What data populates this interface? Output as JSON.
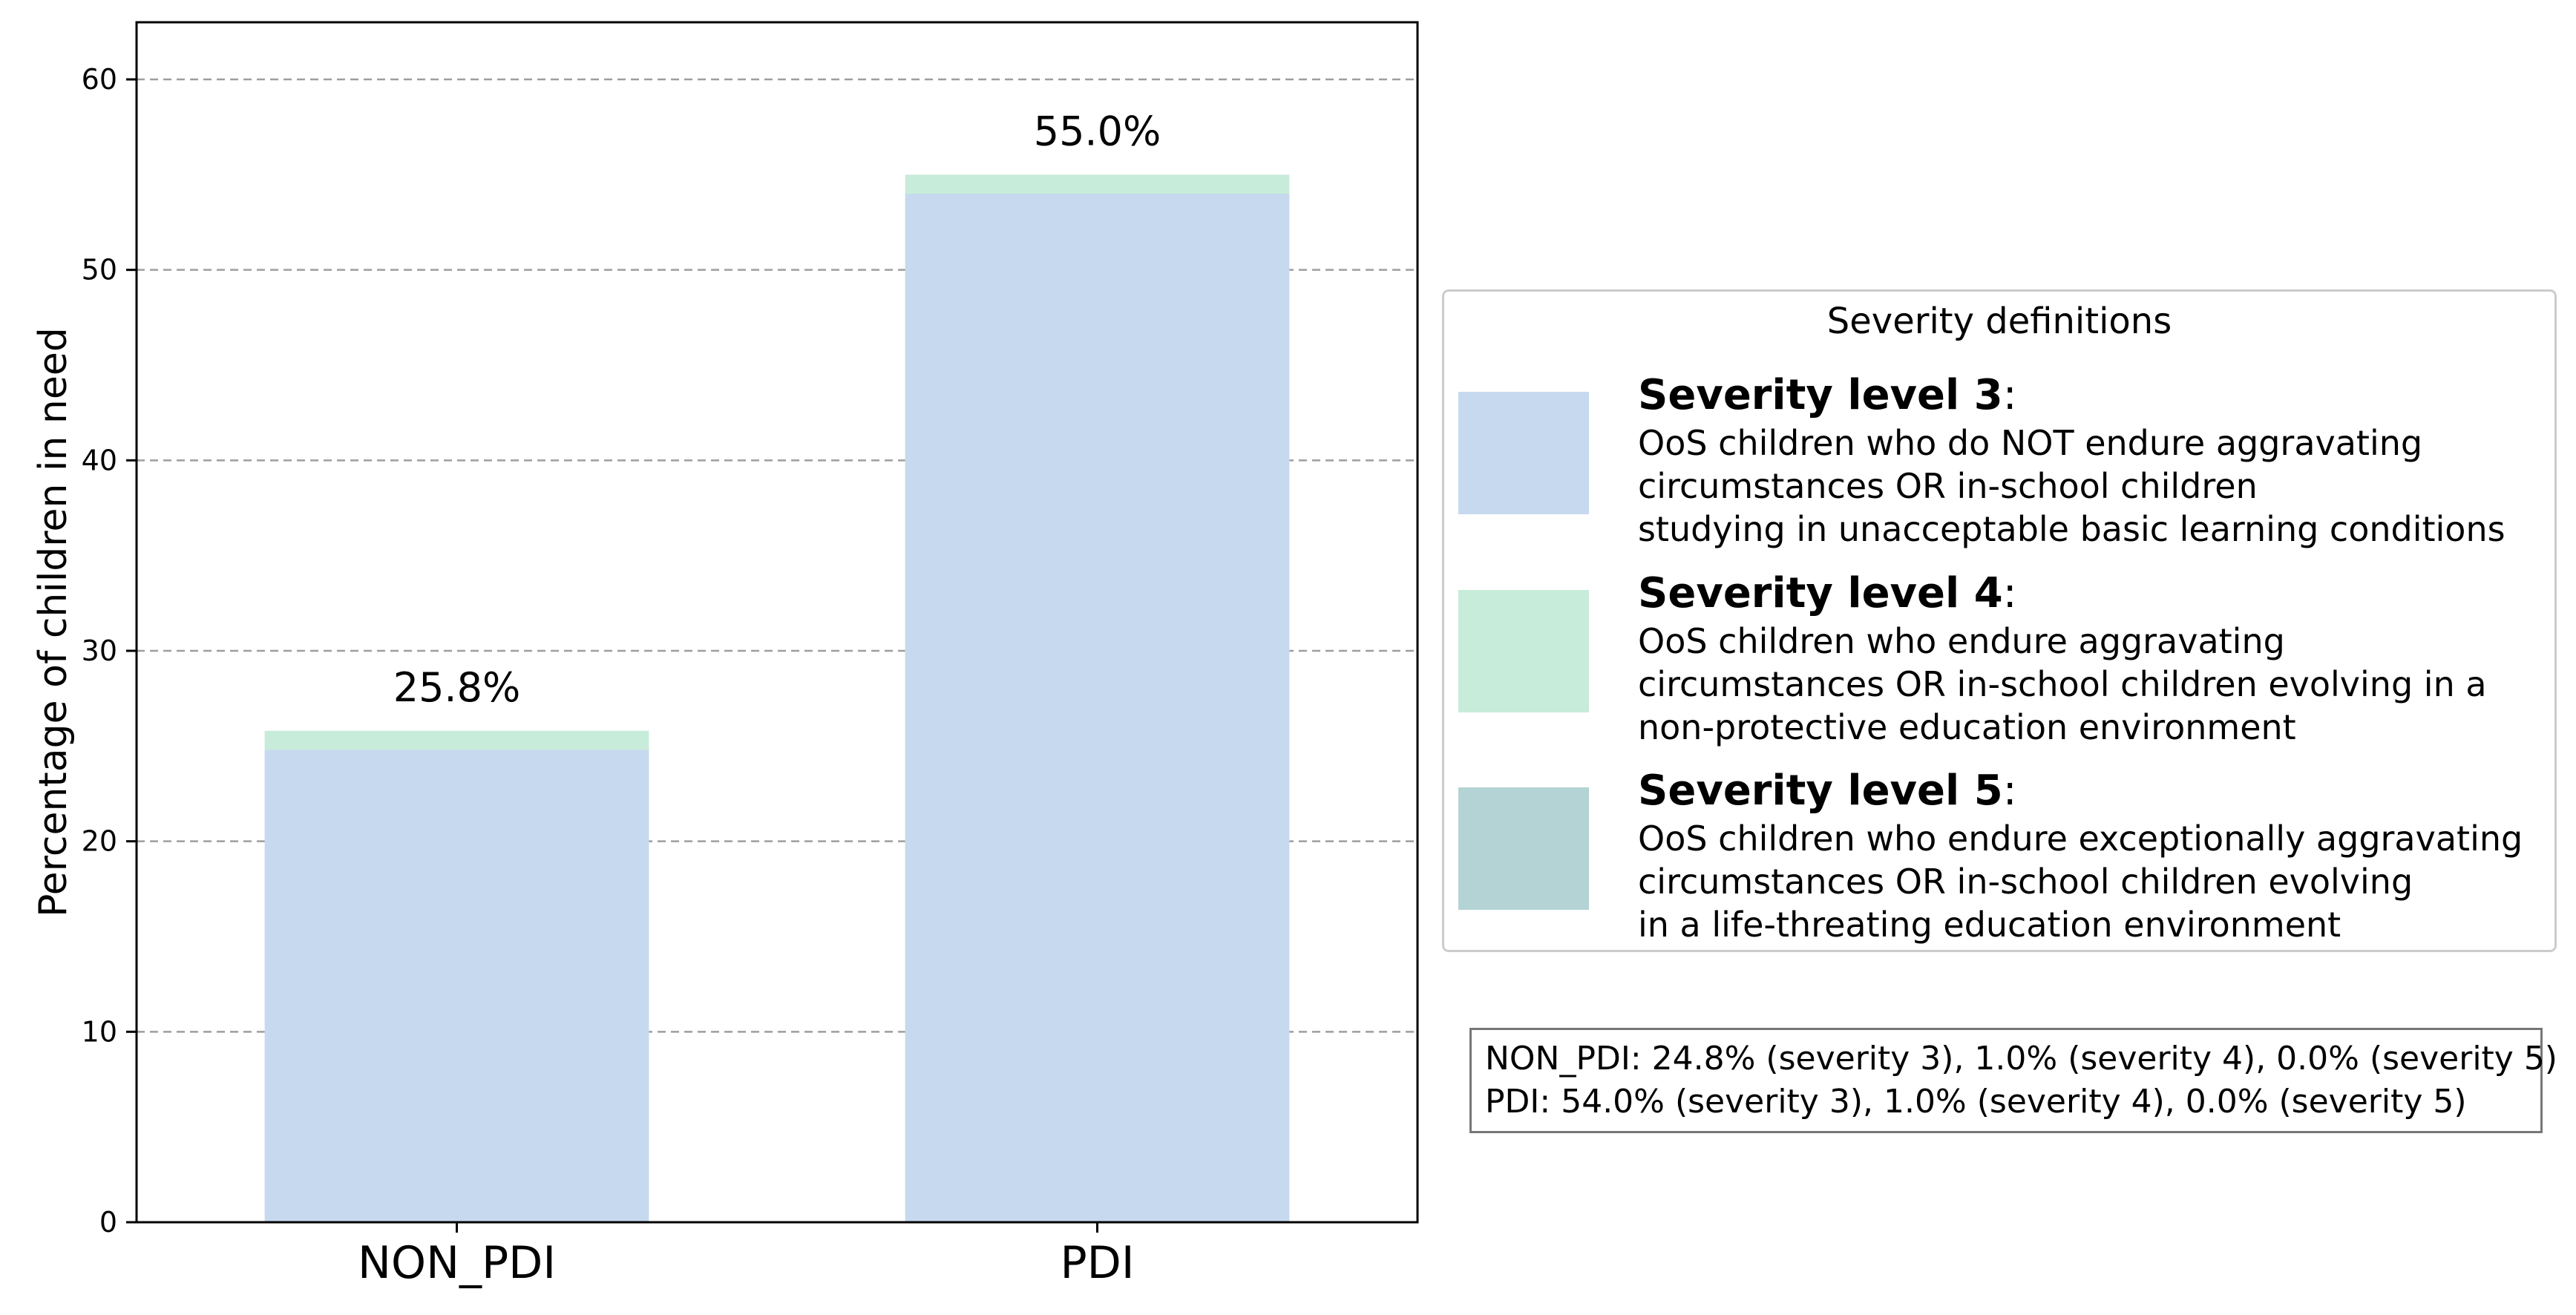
{
  "chart_data": {
    "type": "bar",
    "stacked": true,
    "categories": [
      "NON_PDI",
      "PDI"
    ],
    "series": [
      {
        "name": "Severity level 3",
        "values": [
          24.8,
          54.0
        ],
        "color": "#c6d9ee"
      },
      {
        "name": "Severity level 4",
        "values": [
          1.0,
          1.0
        ],
        "color": "#c8ecda"
      },
      {
        "name": "Severity level 5",
        "values": [
          0.0,
          0.0
        ],
        "color": "#b3d3d4"
      }
    ],
    "totals": [
      25.8,
      55.0
    ],
    "total_labels": [
      "25.8%",
      "55.0%"
    ],
    "ylabel": "Percentage of children in need",
    "xlabel": "",
    "ylim": [
      0,
      63
    ],
    "yticks": [
      0,
      10,
      20,
      30,
      40,
      50,
      60
    ],
    "grid": "horizontal dashed",
    "legend_position": "right"
  },
  "legend": {
    "title": "Severity definitions",
    "entries": [
      {
        "heading": "Severity level 3",
        "suffix": ":",
        "color": "#c6d9ee",
        "lines": [
          "OoS children who do NOT endure aggravating",
          "circumstances OR in-school children",
          "studying in unacceptable basic learning conditions"
        ]
      },
      {
        "heading": "Severity level 4",
        "suffix": ":",
        "color": "#c8ecda",
        "lines": [
          "OoS children who endure aggravating",
          "circumstances OR in-school children evolving in a",
          "non-protective education environment"
        ]
      },
      {
        "heading": "Severity level 5",
        "suffix": ":",
        "color": "#b3d3d4",
        "lines": [
          "OoS children who endure exceptionally aggravating",
          "circumstances OR in-school children evolving",
          "in a life-threating education environment"
        ]
      }
    ]
  },
  "summary": {
    "lines": [
      "NON_PDI: 24.8% (severity 3), 1.0% (severity 4), 0.0% (severity 5)",
      "PDI: 54.0% (severity 3), 1.0% (severity 4), 0.0% (severity 5)"
    ]
  }
}
